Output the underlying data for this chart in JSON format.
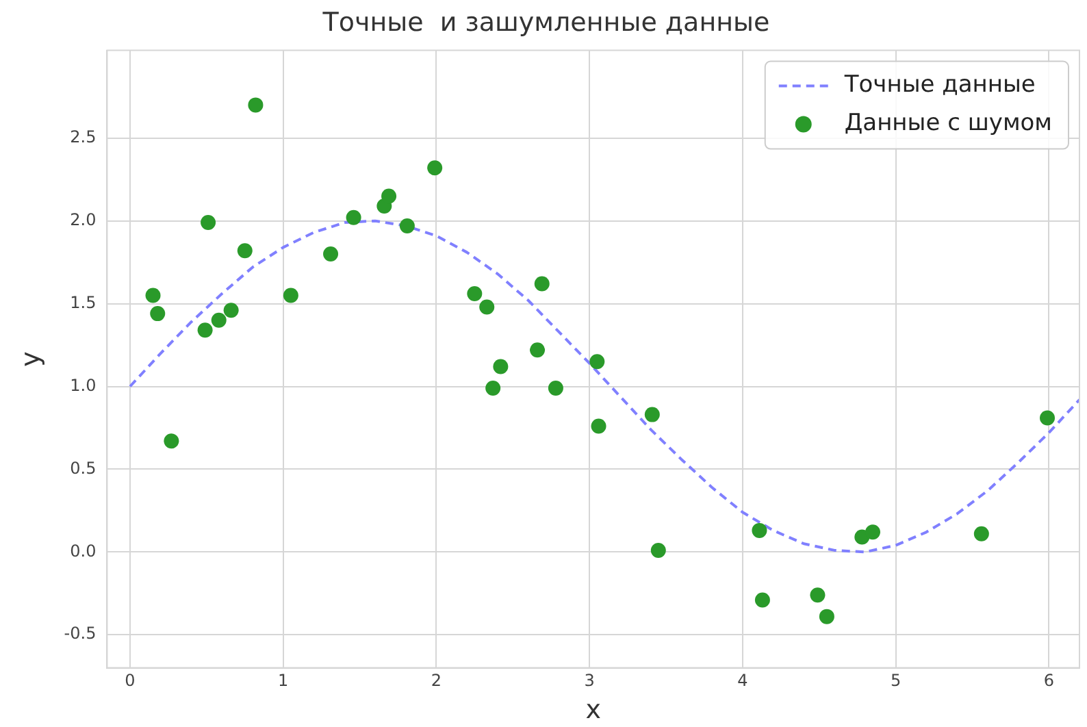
{
  "chart_data": {
    "type": "scatter",
    "title": "Точные  и зашумленные данные",
    "xlabel": "x",
    "ylabel": "y",
    "xlim": [
      -0.15,
      6.2
    ],
    "xticks": [
      0,
      1,
      2,
      3,
      4,
      5,
      6
    ],
    "ylim": [
      -0.7,
      3.03
    ],
    "yticks": [
      -0.5,
      {
        "value": 0,
        "label": "0.0"
      },
      0.5,
      {
        "value": 1,
        "label": "1.0"
      },
      1.5,
      {
        "value": 2,
        "label": "2.0"
      },
      2.5
    ],
    "grid": true,
    "legend": "top right",
    "series": [
      {
        "name": "Точные данные",
        "type": "line",
        "color": "#8080ff",
        "line_style": "dashed",
        "marker": "none",
        "x": [
          0,
          0.2,
          0.4,
          0.6,
          0.8,
          1.0,
          1.2,
          1.4,
          1.6,
          1.8,
          2.0,
          2.2,
          2.4,
          2.6,
          2.8,
          3.0,
          3.2,
          3.4,
          3.6,
          3.8,
          4.0,
          4.2,
          4.4,
          4.6,
          4.8,
          5.0,
          5.2,
          5.4,
          5.6,
          5.8,
          6.0,
          6.2
        ],
        "values": [
          1.0,
          1.2,
          1.39,
          1.56,
          1.72,
          1.84,
          1.93,
          1.99,
          2.0,
          1.97,
          1.91,
          1.81,
          1.68,
          1.52,
          1.33,
          1.14,
          0.94,
          0.74,
          0.56,
          0.39,
          0.24,
          0.13,
          0.05,
          0.01,
          0.0,
          0.04,
          0.12,
          0.23,
          0.37,
          0.54,
          0.72,
          0.92
        ]
      },
      {
        "name": "Данные с шумом",
        "type": "scatter",
        "color": "#2a9a2a",
        "marker": "circle",
        "x": [
          0.15,
          0.18,
          0.27,
          0.49,
          0.51,
          0.58,
          0.66,
          0.75,
          0.82,
          1.05,
          1.31,
          1.46,
          1.66,
          1.69,
          1.81,
          1.99,
          2.25,
          2.33,
          2.37,
          2.42,
          2.66,
          2.69,
          2.78,
          3.05,
          3.06,
          3.41,
          3.45,
          4.11,
          4.13,
          4.49,
          4.55,
          4.78,
          4.85,
          5.56,
          5.99
        ],
        "values": [
          1.55,
          1.44,
          0.67,
          1.34,
          1.99,
          1.4,
          1.46,
          1.82,
          2.7,
          1.55,
          1.8,
          2.02,
          2.09,
          2.15,
          1.97,
          2.32,
          1.56,
          1.48,
          0.99,
          1.12,
          1.22,
          1.62,
          0.99,
          1.15,
          0.76,
          0.83,
          0.01,
          0.13,
          -0.29,
          -0.26,
          -0.39,
          0.09,
          0.12,
          0.11,
          0.81
        ]
      }
    ]
  }
}
